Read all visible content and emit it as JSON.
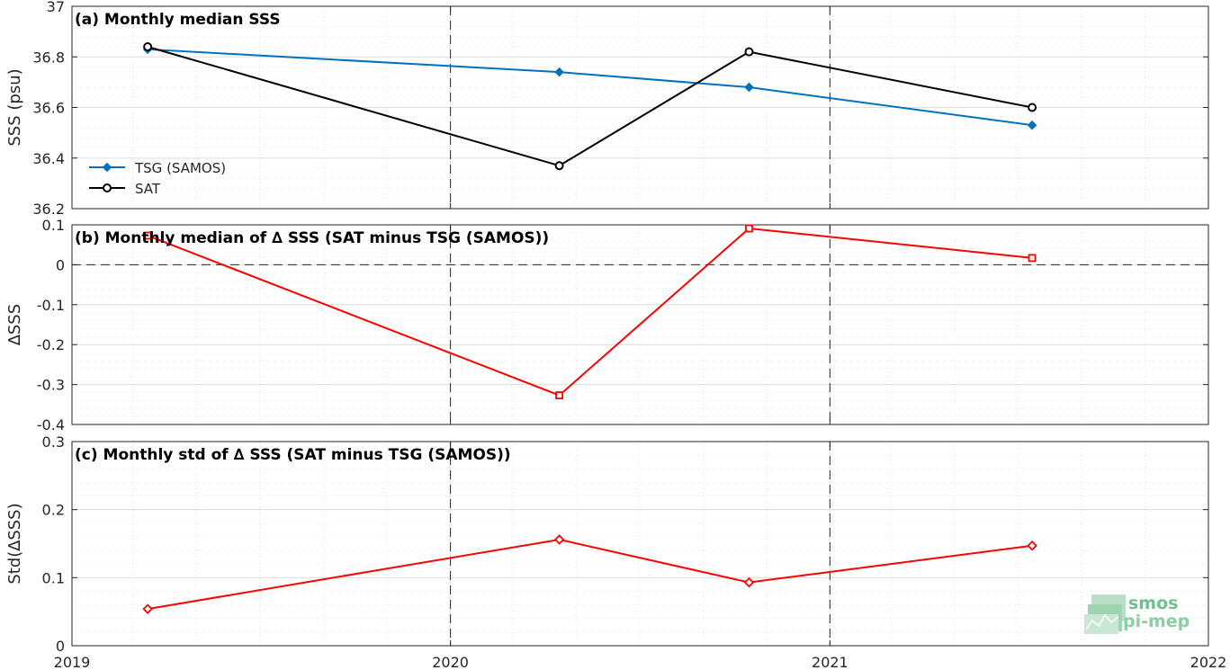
{
  "chart_data": [
    {
      "type": "line",
      "title": "(a) Monthly median SSS",
      "ylabel": "SSS (psu)",
      "xlim": [
        "2019-01-01",
        "2022-01-01"
      ],
      "ylim": [
        36.2,
        37.0
      ],
      "x_ticks": [
        "2019",
        "2020",
        "2021",
        "2022"
      ],
      "y_ticks": [
        "36.2",
        "36.4",
        "36.6",
        "36.8",
        "37"
      ],
      "legend": "left",
      "grid": true,
      "series": [
        {
          "name": "TSG (SAMOS)",
          "color": "#0072bd",
          "marker": "diamond",
          "x": [
            "2019-03-15",
            "2020-04-15",
            "2020-10-15",
            "2021-07-15"
          ],
          "values": [
            36.83,
            36.74,
            36.68,
            36.53
          ]
        },
        {
          "name": "SAT",
          "color": "#000000",
          "marker": "circle",
          "x": [
            "2019-03-15",
            "2020-04-15",
            "2020-10-15",
            "2021-07-15"
          ],
          "values": [
            36.84,
            36.37,
            36.82,
            36.6
          ]
        }
      ]
    },
    {
      "type": "line",
      "title": "(b) Monthly median of ∆ SSS (SAT minus TSG (SAMOS))",
      "ylabel": "∆SSS",
      "xlim": [
        "2019-01-01",
        "2022-01-01"
      ],
      "ylim": [
        -0.4,
        0.1
      ],
      "y_ticks": [
        "-0.4",
        "-0.3",
        "-0.2",
        "-0.1",
        "0",
        "0.1"
      ],
      "reference_line": 0,
      "grid": true,
      "series": [
        {
          "color": "#ff0000",
          "marker": "square",
          "x": [
            "2019-03-15",
            "2020-04-15",
            "2020-10-15",
            "2021-07-15"
          ],
          "values": [
            0.073,
            -0.327,
            0.091,
            0.017
          ]
        }
      ]
    },
    {
      "type": "line",
      "title": "(c) Monthly std of ∆ SSS (SAT minus TSG (SAMOS))",
      "ylabel": "Std(∆SSS)",
      "xlim": [
        "2019-01-01",
        "2022-01-01"
      ],
      "ylim": [
        0,
        0.3
      ],
      "y_ticks": [
        "0",
        "0.1",
        "0.2",
        "0.3"
      ],
      "grid": true,
      "series": [
        {
          "color": "#ff0000",
          "marker": "diamond",
          "x": [
            "2019-03-15",
            "2020-04-15",
            "2020-10-15",
            "2021-07-15"
          ],
          "values": [
            0.054,
            0.156,
            0.093,
            0.147
          ]
        }
      ]
    }
  ],
  "logo": {
    "line1": "smos",
    "line2": "pi-mep"
  }
}
